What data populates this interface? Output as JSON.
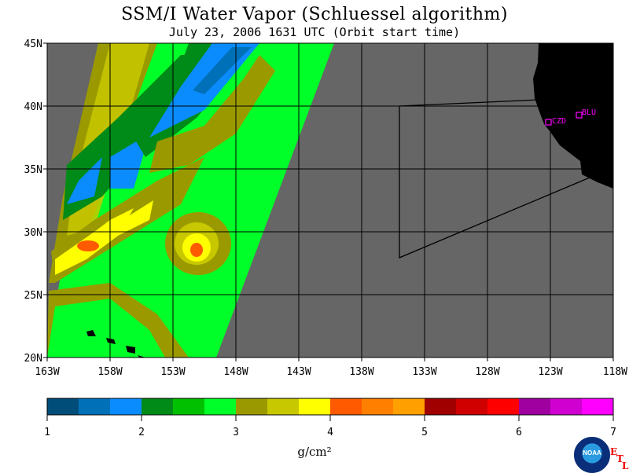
{
  "title": "SSM/I Water Vapor (Schluessel algorithm)",
  "subtitle": "July 23, 2006  1631 UTC  (Orbit start time)",
  "map": {
    "lat_labels": [
      "45N",
      "40N",
      "35N",
      "30N",
      "25N",
      "20N"
    ],
    "lon_labels": [
      "163W",
      "158W",
      "153W",
      "148W",
      "143W",
      "138W",
      "133W",
      "128W",
      "123W",
      "118W"
    ],
    "land_color": "#000000",
    "no_data_color": "#666666",
    "stations": [
      {
        "name": "CZD"
      },
      {
        "name": "BLU"
      }
    ]
  },
  "colorbar": {
    "ticks": [
      "1",
      "2",
      "3",
      "4",
      "5",
      "6",
      "7"
    ],
    "colors": [
      "#004d7a",
      "#0071b8",
      "#0a8cff",
      "#008a17",
      "#00c000",
      "#00ff28",
      "#9a9a00",
      "#c8c800",
      "#ffff00",
      "#ff5a00",
      "#ff8000",
      "#ffa000",
      "#a00000",
      "#d00000",
      "#ff0000",
      "#a000a0",
      "#d000d0",
      "#ff00ff"
    ],
    "unit": "g/cm²"
  },
  "logo": {
    "text": "NOAA",
    "etl": [
      "E",
      "T",
      "L"
    ]
  }
}
